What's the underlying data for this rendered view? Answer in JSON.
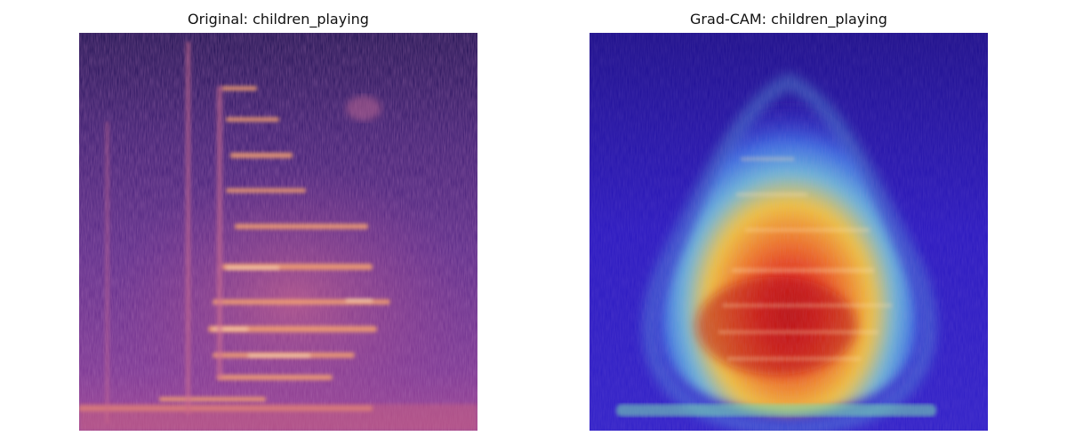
{
  "panels": [
    {
      "title": "Original: children_playing",
      "kind": "spectrogram",
      "colormap": "magma"
    },
    {
      "title": "Grad-CAM: children_playing",
      "kind": "gradcam-overlay",
      "colormap": "jet"
    }
  ],
  "colors": {
    "spec_dark": "#1a0f4a",
    "spec_mid": "#6a2f8f",
    "spec_warm": "#c85a8a",
    "spec_bright": "#f7b07a",
    "cam_cold": "#2a10c8",
    "cam_cyan": "#4aa6e0",
    "cam_yellow": "#f5c840",
    "cam_orange": "#f07830",
    "cam_red": "#d82020"
  }
}
